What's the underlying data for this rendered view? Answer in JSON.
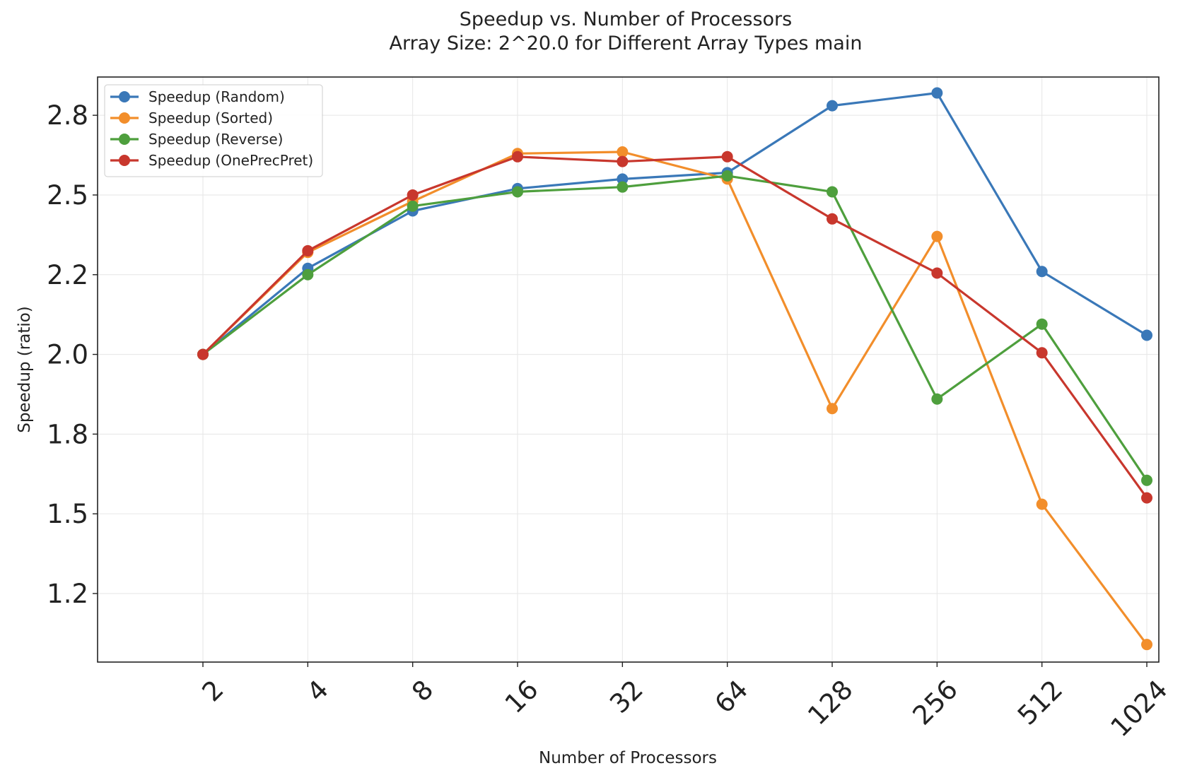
{
  "chart_data": {
    "type": "line",
    "title": "Speedup vs. Number of Processors",
    "subtitle": "Array Size: 2^20.0 for Different Array Types main",
    "xlabel": "Number of Processors",
    "ylabel": "Speedup (ratio)",
    "x": [
      2,
      4,
      8,
      16,
      32,
      64,
      128,
      256,
      512,
      1024
    ],
    "x_tick_labels": [
      "2",
      "4",
      "8",
      "16",
      "32",
      "64",
      "128",
      "256",
      "512",
      "1024"
    ],
    "x_scale": "log2",
    "y_ticks": [
      1.25,
      1.5,
      1.75,
      2.0,
      2.25,
      2.5,
      2.75
    ],
    "y_tick_labels": [
      "1.2",
      "1.5",
      "1.8",
      "2.0",
      "2.2",
      "2.5",
      "2.8"
    ],
    "ylim": [
      1.035,
      2.87
    ],
    "grid": true,
    "legend_position": "top-left",
    "series": [
      {
        "name": "Speedup (Random)",
        "color": "#3a78b8",
        "values": [
          2.0,
          2.27,
          2.45,
          2.52,
          2.55,
          2.57,
          2.78,
          2.82,
          2.26,
          2.06
        ]
      },
      {
        "name": "Speedup (Sorted)",
        "color": "#f28e2b",
        "values": [
          2.0,
          2.32,
          2.48,
          2.63,
          2.635,
          2.55,
          1.83,
          2.37,
          1.53,
          1.09
        ]
      },
      {
        "name": "Speedup (Reverse)",
        "color": "#4e9f3d",
        "values": [
          2.0,
          2.25,
          2.465,
          2.51,
          2.525,
          2.56,
          2.51,
          1.86,
          2.095,
          1.605
        ]
      },
      {
        "name": "Speedup (OnePrecPret)",
        "color": "#c8372d",
        "values": [
          2.0,
          2.325,
          2.5,
          2.62,
          2.605,
          2.62,
          2.425,
          2.255,
          2.005,
          1.55
        ]
      }
    ]
  }
}
